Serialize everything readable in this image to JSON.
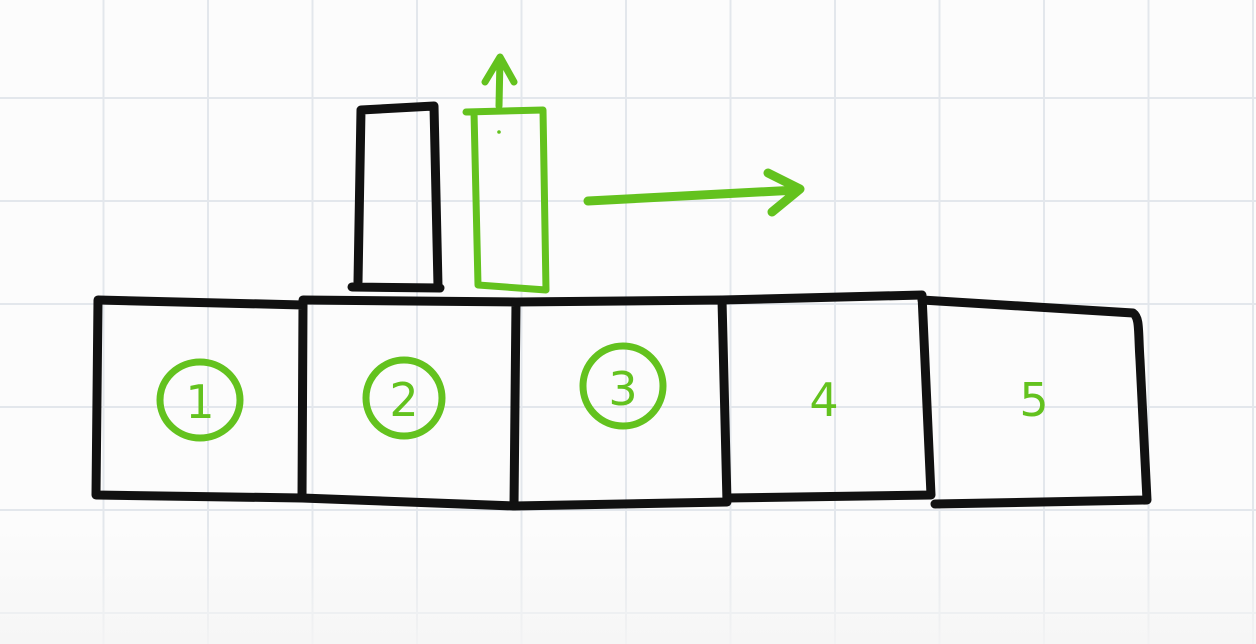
{
  "diagram": {
    "cells": [
      {
        "label": "1",
        "circled": true
      },
      {
        "label": "2",
        "circled": true
      },
      {
        "label": "3",
        "circled": true
      },
      {
        "label": "4",
        "circled": false
      },
      {
        "label": "5",
        "circled": false
      }
    ],
    "colors": {
      "ink": "#111111",
      "highlight": "#63c21e",
      "grid": "#e3e7ec"
    }
  }
}
